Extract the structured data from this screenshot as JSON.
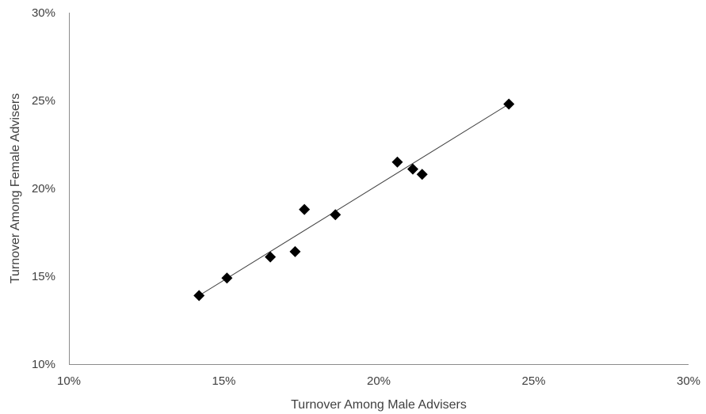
{
  "chart_data": {
    "type": "scatter",
    "title": "",
    "xlabel": "Turnover Among Male Advisers",
    "ylabel": "Turnover Among Female Advisers",
    "xlim": [
      0.1,
      0.3
    ],
    "ylim": [
      0.1,
      0.3
    ],
    "x_ticks": [
      {
        "value": 0.1,
        "label": "10%"
      },
      {
        "value": 0.15,
        "label": "15%"
      },
      {
        "value": 0.2,
        "label": "20%"
      },
      {
        "value": 0.25,
        "label": "25%"
      },
      {
        "value": 0.3,
        "label": "30%"
      }
    ],
    "y_ticks": [
      {
        "value": 0.1,
        "label": "10%"
      },
      {
        "value": 0.15,
        "label": "15%"
      },
      {
        "value": 0.2,
        "label": "20%"
      },
      {
        "value": 0.25,
        "label": "25%"
      },
      {
        "value": 0.3,
        "label": "30%"
      }
    ],
    "grid": false,
    "legend": "none",
    "marker": "diamond",
    "marker_color": "#000000",
    "trendline": {
      "type": "linear",
      "x_range": [
        0.142,
        0.242
      ],
      "y_range": [
        0.139,
        0.248
      ],
      "color": "#404040"
    },
    "points": [
      {
        "x": 0.142,
        "y": 0.139
      },
      {
        "x": 0.151,
        "y": 0.149
      },
      {
        "x": 0.165,
        "y": 0.161
      },
      {
        "x": 0.173,
        "y": 0.164
      },
      {
        "x": 0.176,
        "y": 0.188
      },
      {
        "x": 0.186,
        "y": 0.185
      },
      {
        "x": 0.206,
        "y": 0.215
      },
      {
        "x": 0.211,
        "y": 0.211
      },
      {
        "x": 0.214,
        "y": 0.208
      },
      {
        "x": 0.242,
        "y": 0.248
      }
    ]
  }
}
